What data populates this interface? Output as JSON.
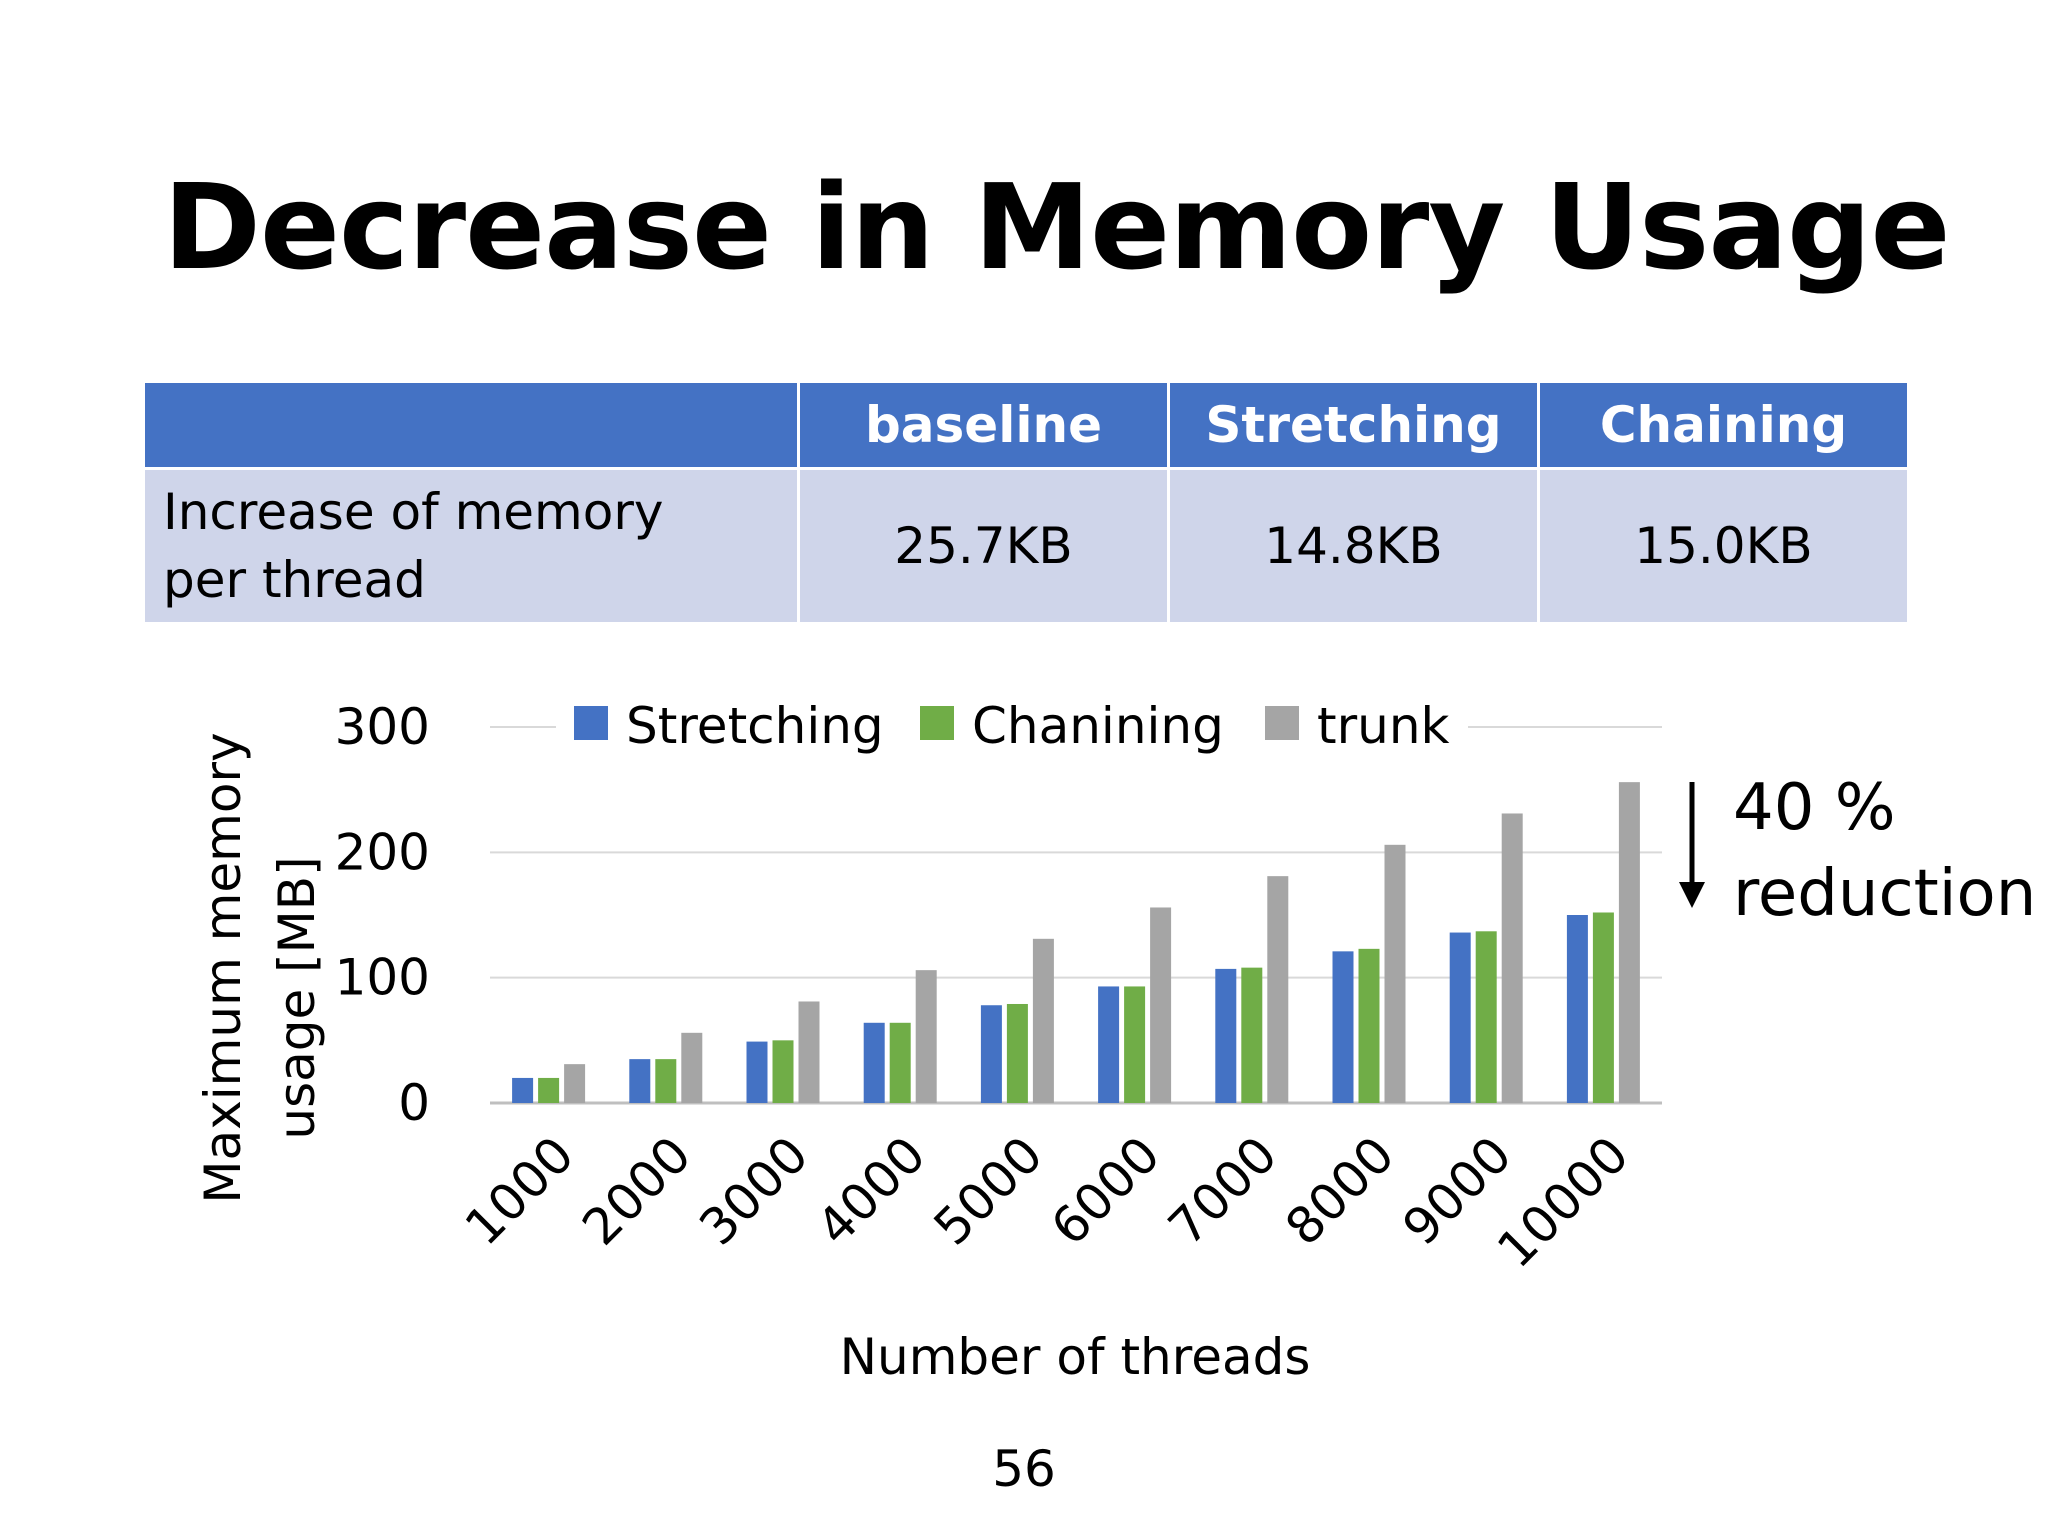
{
  "slide": {
    "title": "Decrease in Memory Usage",
    "page_number": "56"
  },
  "table": {
    "headers": [
      "",
      "baseline",
      "Stretching",
      "Chaining"
    ],
    "rows": [
      {
        "label_line1": "Increase of memory",
        "label_line2": "per thread",
        "values": [
          "25.7KB",
          "14.8KB",
          "15.0KB"
        ]
      }
    ]
  },
  "annotation": {
    "line1": "40 %",
    "line2": "reduction"
  },
  "colors": {
    "header_bg": "#4472c4",
    "row_bg": "#cfd5ea",
    "stretching": "#4472c4",
    "chanining": "#70ad47",
    "trunk": "#a5a5a5"
  },
  "chart_data": {
    "type": "bar",
    "title": "",
    "xlabel": "Number of threads",
    "ylabel_line1": "Maximum memory",
    "ylabel_line2": "usage [MB]",
    "ylim": [
      0,
      300
    ],
    "yticks": [
      "0",
      "100",
      "200",
      "300"
    ],
    "grid": true,
    "legend_position": "top",
    "categories": [
      "1000",
      "2000",
      "3000",
      "4000",
      "5000",
      "6000",
      "7000",
      "8000",
      "9000",
      "10000"
    ],
    "series": [
      {
        "name": "Stretching",
        "color": "#4472c4",
        "values": [
          20,
          35,
          49,
          64,
          78,
          93,
          107,
          121,
          136,
          150
        ]
      },
      {
        "name": "Chanining",
        "color": "#70ad47",
        "values": [
          20,
          35,
          50,
          64,
          79,
          93,
          108,
          123,
          137,
          152
        ]
      },
      {
        "name": "trunk",
        "color": "#a5a5a5",
        "values": [
          31,
          56,
          81,
          106,
          131,
          156,
          181,
          206,
          231,
          256
        ]
      }
    ]
  }
}
